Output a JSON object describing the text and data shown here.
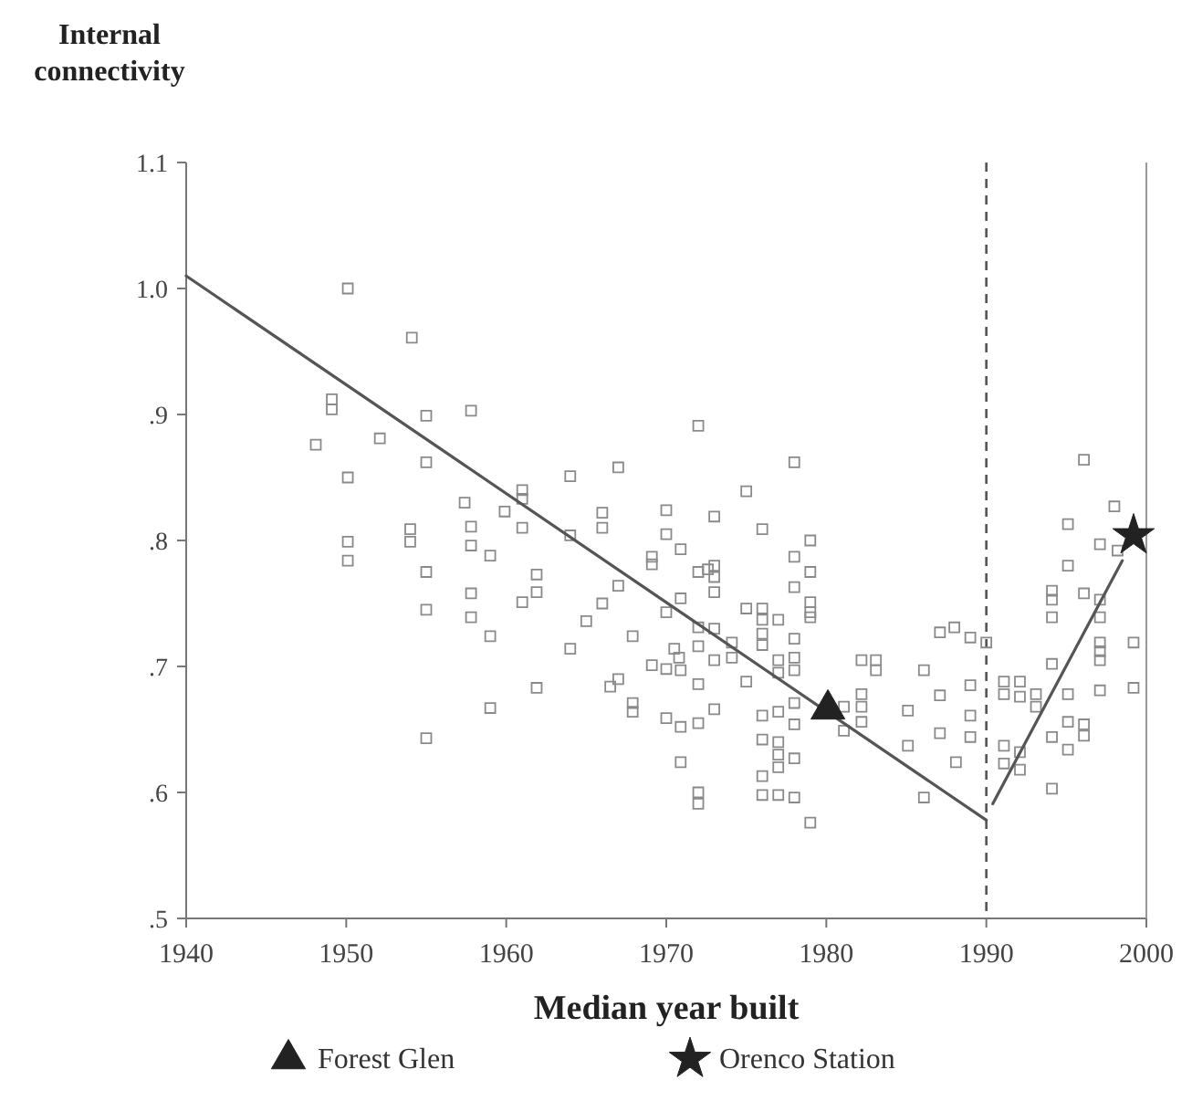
{
  "chart_data": {
    "type": "scatter",
    "ylabel": "Internal connectivity",
    "xlabel": "Median year built",
    "xlim": [
      1940,
      2000
    ],
    "xticks": [
      1940,
      1950,
      1960,
      1970,
      1980,
      1990,
      2000
    ],
    "ylim": [
      0.5,
      1.1
    ],
    "yticks": [
      {
        "value": 0.5,
        "label": ".5"
      },
      {
        "value": 0.6,
        "label": ".6"
      },
      {
        "value": 0.7,
        "label": ".7"
      },
      {
        "value": 0.8,
        "label": ".8"
      },
      {
        "value": 0.9,
        "label": ".9"
      },
      {
        "value": 1.0,
        "label": "1.0"
      },
      {
        "value": 1.1,
        "label": "1.1"
      }
    ],
    "grid": false,
    "legend": "bottom",
    "ref_lines": [
      {
        "axis": "x",
        "value": 1990,
        "line_style": "dashed",
        "color": "#555555"
      }
    ],
    "series": [
      {
        "marker": "square",
        "color": "#8a8a8a",
        "x": [
          1948.1,
          1949.1,
          1949.1,
          1950.1,
          1950.1,
          1950.1,
          1950.1,
          1952.1,
          1954.1,
          1954,
          1954,
          1955,
          1955,
          1955,
          1955,
          1955,
          1957.4,
          1957.8,
          1957.8,
          1957.8,
          1957.8,
          1957.8,
          1959,
          1959,
          1959,
          1959.9,
          1961,
          1961,
          1961,
          1961,
          1961.9,
          1961.9,
          1961.9,
          1964,
          1964,
          1964,
          1965,
          1966,
          1966,
          1966,
          1966.5,
          1967,
          1967,
          1967,
          1967.9,
          1967.9,
          1967.9,
          1969.1,
          1969.1,
          1969.1,
          1970,
          1970,
          1970,
          1970,
          1970,
          1970.5,
          1970.8,
          1970.9,
          1970.9,
          1970.9,
          1970.9,
          1970.9,
          1972,
          1972,
          1972.6,
          1972,
          1972,
          1972,
          1972,
          1972,
          1972,
          1973,
          1973,
          1973,
          1973,
          1973,
          1973,
          1973,
          1974.1,
          1974.1,
          1975,
          1975,
          1975,
          1976,
          1976,
          1976,
          1976,
          1976,
          1977,
          1977,
          1977,
          1976,
          1976,
          1976,
          1976,
          1977,
          1977,
          1977,
          1977,
          1977,
          1978,
          1978,
          1978,
          1978,
          1978,
          1978,
          1978,
          1978,
          1978,
          1978,
          1979,
          1979,
          1979,
          1979,
          1979,
          1979,
          1981.1,
          1981.1,
          1982.2,
          1982.2,
          1982.2,
          1982.2,
          1983.1,
          1983.1,
          1985.1,
          1985.1,
          1986.1,
          1986.1,
          1987.1,
          1988,
          1987.1,
          1987.1,
          1988.1,
          1989,
          1989,
          1989,
          1989,
          1990,
          1991.1,
          1992.1,
          1991.1,
          1992.1,
          1991.1,
          1991.1,
          1992.1,
          1992.1,
          1993.1,
          1993.1,
          1994.1,
          1994.1,
          1994.1,
          1994.1,
          1994.1,
          1994.1,
          1995.1,
          1995.1,
          1995.1,
          1995.1,
          1995.1,
          1996.1,
          1996.1,
          1996.1,
          1996.1,
          1997.1,
          1997.1,
          1997.1,
          1997.1,
          1997.1,
          1997.1,
          1997.1,
          1998,
          1998.2,
          1999.2,
          1999.2
        ],
        "values": [
          0.876,
          0.912,
          0.904,
          0.85,
          1.0,
          0.799,
          0.784,
          0.881,
          0.961,
          0.809,
          0.799,
          0.899,
          0.862,
          0.775,
          0.745,
          0.643,
          0.83,
          0.903,
          0.811,
          0.796,
          0.758,
          0.739,
          0.788,
          0.724,
          0.667,
          0.823,
          0.84,
          0.833,
          0.81,
          0.751,
          0.773,
          0.759,
          0.683,
          0.851,
          0.804,
          0.714,
          0.736,
          0.822,
          0.81,
          0.75,
          0.684,
          0.69,
          0.858,
          0.764,
          0.724,
          0.671,
          0.664,
          0.787,
          0.781,
          0.701,
          0.824,
          0.805,
          0.743,
          0.698,
          0.659,
          0.714,
          0.707,
          0.793,
          0.754,
          0.697,
          0.652,
          0.624,
          0.891,
          0.775,
          0.777,
          0.731,
          0.716,
          0.686,
          0.655,
          0.6,
          0.591,
          0.819,
          0.78,
          0.771,
          0.759,
          0.73,
          0.705,
          0.666,
          0.719,
          0.707,
          0.839,
          0.746,
          0.688,
          0.809,
          0.746,
          0.737,
          0.726,
          0.717,
          0.737,
          0.705,
          0.695,
          0.661,
          0.642,
          0.613,
          0.598,
          0.664,
          0.64,
          0.63,
          0.62,
          0.598,
          0.862,
          0.787,
          0.763,
          0.722,
          0.707,
          0.697,
          0.671,
          0.654,
          0.627,
          0.596,
          0.8,
          0.775,
          0.751,
          0.743,
          0.739,
          0.576,
          0.668,
          0.649,
          0.705,
          0.678,
          0.668,
          0.656,
          0.705,
          0.697,
          0.665,
          0.637,
          0.697,
          0.596,
          0.727,
          0.731,
          0.677,
          0.647,
          0.624,
          0.723,
          0.685,
          0.661,
          0.644,
          0.719,
          0.688,
          0.688,
          0.678,
          0.676,
          0.637,
          0.623,
          0.632,
          0.618,
          0.678,
          0.668,
          0.76,
          0.753,
          0.739,
          0.702,
          0.644,
          0.603,
          0.813,
          0.78,
          0.678,
          0.656,
          0.634,
          0.864,
          0.758,
          0.654,
          0.645,
          0.797,
          0.753,
          0.739,
          0.719,
          0.712,
          0.705,
          0.681,
          0.827,
          0.792,
          0.719,
          0.683
        ]
      },
      {
        "type": "line",
        "marker": "none",
        "color": "#555555",
        "x": [
          1940,
          1990
        ],
        "values": [
          1.01,
          0.578
        ]
      },
      {
        "type": "line",
        "marker": "none",
        "color": "#555555",
        "x": [
          1990.4,
          1998.5
        ],
        "values": [
          0.591,
          0.784
        ]
      },
      {
        "type": "scatter",
        "name": "Forest Glen",
        "marker": "triangle",
        "color": "#222222",
        "x": [
          1980.1
        ],
        "values": [
          0.666
        ]
      },
      {
        "type": "scatter",
        "name": "Orenco Station",
        "marker": "star",
        "color": "#222222",
        "x": [
          1999.2
        ],
        "values": [
          0.804
        ]
      }
    ]
  }
}
